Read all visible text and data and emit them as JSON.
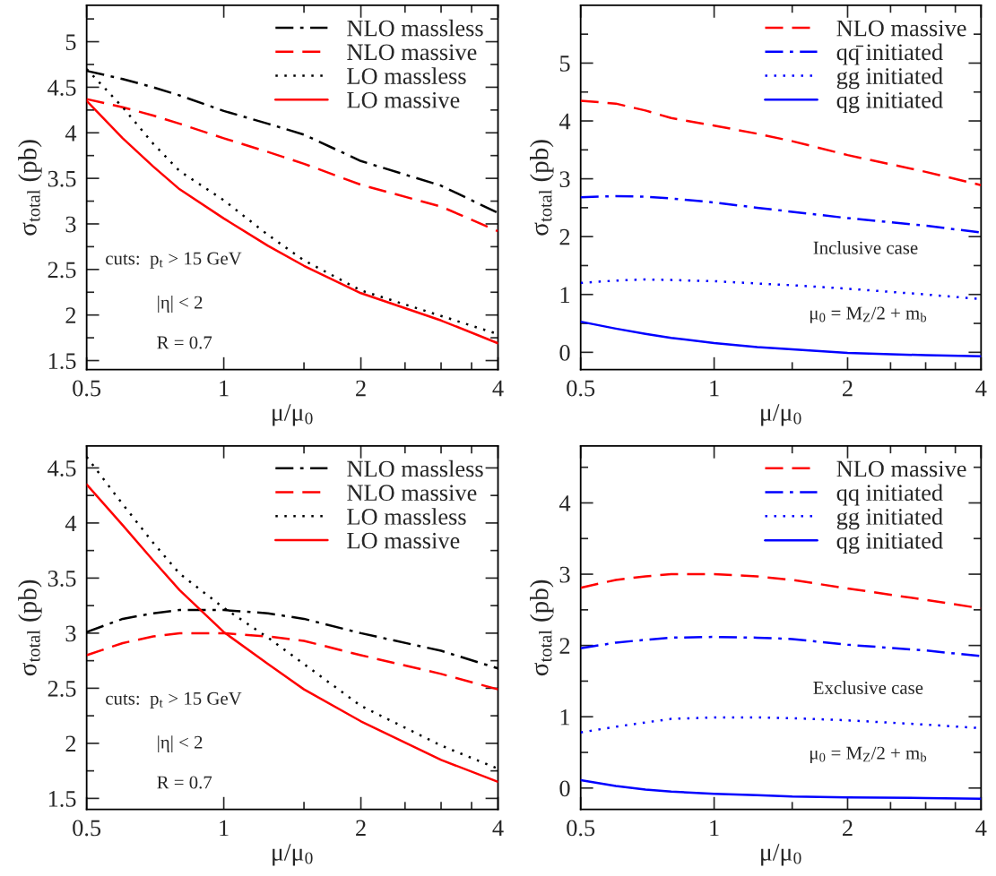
{
  "chart_data": [
    {
      "type": "line",
      "xlabel": "μ/μ$_{0}$",
      "ylabel": "σ$_{total}$ (pb)",
      "log": "x",
      "legend": "top right",
      "x": [
        0.5,
        0.6,
        0.7,
        0.8,
        1,
        1.25,
        1.5,
        2,
        3,
        4
      ],
      "xlim": [
        0.5,
        4
      ],
      "xticks": [
        0.5,
        1,
        2,
        4,
        {
          "value": 1.5,
          "label": null
        },
        {
          "value": 2.5,
          "label": null
        },
        {
          "value": 3,
          "label": null
        },
        {
          "value": 3.5,
          "label": null
        }
      ],
      "ylim": [
        1.4,
        5.4
      ],
      "yticks": [
        1.5,
        2,
        2.5,
        3,
        3.5,
        4,
        4.5,
        5,
        {
          "value": 1.75,
          "label": null
        },
        {
          "value": 2.25,
          "label": null
        },
        {
          "value": 2.75,
          "label": null
        },
        {
          "value": 3.25,
          "label": null
        },
        {
          "value": 3.75,
          "label": null
        },
        {
          "value": 4.25,
          "label": null
        },
        {
          "value": 4.75,
          "label": null
        },
        {
          "value": 5.25,
          "label": null
        }
      ],
      "series": [
        {
          "name": "NLO massless",
          "color": "#000000",
          "line_style": "dashdot",
          "values": [
            4.68,
            4.59,
            4.5,
            4.41,
            4.24,
            4.1,
            3.98,
            3.69,
            3.42,
            3.12
          ]
        },
        {
          "name": "NLO massive",
          "color": "#ff0000",
          "line_style": "dashed",
          "values": [
            4.37,
            4.28,
            4.19,
            4.1,
            3.94,
            3.79,
            3.66,
            3.43,
            3.19,
            2.92
          ]
        },
        {
          "name": "LO massless",
          "color": "#000000",
          "line_style": "dotted",
          "values": [
            4.7,
            4.28,
            3.88,
            3.58,
            3.26,
            2.88,
            2.6,
            2.27,
            1.99,
            1.79
          ]
        },
        {
          "name": "LO massive",
          "color": "#ff0000",
          "line_style": "solid",
          "values": [
            4.35,
            3.94,
            3.63,
            3.38,
            3.06,
            2.76,
            2.54,
            2.24,
            1.94,
            1.69
          ]
        }
      ],
      "annotations": [
        "cuts:  p$_{t}$ > 15 GeV",
        "|η| < 2",
        "R = 0.7"
      ]
    },
    {
      "type": "line",
      "xlabel": "μ/μ$_{0}$",
      "ylabel": "σ$_{total}$ (pb)",
      "log": "x",
      "legend": "top right",
      "x": [
        0.5,
        0.6,
        0.7,
        0.8,
        1,
        1.25,
        1.5,
        2,
        3,
        4
      ],
      "xlim": [
        0.5,
        4
      ],
      "xticks": [
        0.5,
        1,
        2,
        4,
        {
          "value": 1.5,
          "label": null
        },
        {
          "value": 2.5,
          "label": null
        },
        {
          "value": 3,
          "label": null
        },
        {
          "value": 3.5,
          "label": null
        }
      ],
      "ylim": [
        -0.3,
        6
      ],
      "yticks": [
        0,
        1,
        2,
        3,
        4,
        5,
        {
          "value": 0.5,
          "label": null
        },
        {
          "value": 1.5,
          "label": null
        },
        {
          "value": 2.5,
          "label": null
        },
        {
          "value": 3.5,
          "label": null
        },
        {
          "value": 4.5,
          "label": null
        },
        {
          "value": 5.5,
          "label": null
        }
      ],
      "series": [
        {
          "name": "NLO massive",
          "color": "#ff0000",
          "line_style": "dashed",
          "values": [
            4.35,
            4.3,
            4.18,
            4.05,
            3.92,
            3.78,
            3.65,
            3.41,
            3.12,
            2.89
          ]
        },
        {
          "name": "qq̄ initiated",
          "color": "#0000ff",
          "line_style": "dashdot",
          "values": [
            2.68,
            2.7,
            2.69,
            2.66,
            2.59,
            2.5,
            2.43,
            2.32,
            2.19,
            2.07
          ]
        },
        {
          "name": "gg initiated",
          "color": "#0000ff",
          "line_style": "dotted",
          "values": [
            1.2,
            1.24,
            1.26,
            1.25,
            1.23,
            1.19,
            1.16,
            1.1,
            1.0,
            0.92
          ]
        },
        {
          "name": "qg initiated",
          "color": "#0000ff",
          "line_style": "solid",
          "values": [
            0.53,
            0.41,
            0.32,
            0.25,
            0.16,
            0.09,
            0.05,
            -0.01,
            -0.05,
            -0.07
          ]
        }
      ],
      "annotations": [
        "Inclusive case",
        "μ$_{0}$ = M$_{Z}$/2 + m$_{b}$"
      ]
    },
    {
      "type": "line",
      "xlabel": "μ/μ$_{0}$",
      "ylabel": "σ$_{total}$ (pb)",
      "log": "x",
      "legend": "top right",
      "x": [
        0.5,
        0.6,
        0.7,
        0.8,
        1,
        1.25,
        1.5,
        2,
        3,
        4
      ],
      "xlim": [
        0.5,
        4
      ],
      "xticks": [
        0.5,
        1,
        2,
        4,
        {
          "value": 1.5,
          "label": null
        },
        {
          "value": 2.5,
          "label": null
        },
        {
          "value": 3,
          "label": null
        },
        {
          "value": 3.5,
          "label": null
        }
      ],
      "ylim": [
        1.4,
        4.7
      ],
      "yticks": [
        1.5,
        2,
        2.5,
        3,
        3.5,
        4,
        4.5,
        {
          "value": 1.75,
          "label": null
        },
        {
          "value": 2.25,
          "label": null
        },
        {
          "value": 2.75,
          "label": null
        },
        {
          "value": 3.25,
          "label": null
        },
        {
          "value": 3.75,
          "label": null
        },
        {
          "value": 4.25,
          "label": null
        }
      ],
      "series": [
        {
          "name": "NLO massless",
          "color": "#000000",
          "line_style": "dashdot",
          "values": [
            3.01,
            3.13,
            3.18,
            3.21,
            3.21,
            3.18,
            3.13,
            3.0,
            2.84,
            2.68
          ]
        },
        {
          "name": "NLO massive",
          "color": "#ff0000",
          "line_style": "dashed",
          "values": [
            2.8,
            2.91,
            2.97,
            3.0,
            3.0,
            2.97,
            2.93,
            2.8,
            2.63,
            2.49
          ]
        },
        {
          "name": "LO massless",
          "color": "#000000",
          "line_style": "dotted",
          "values": [
            4.6,
            4.17,
            3.82,
            3.54,
            3.23,
            2.96,
            2.72,
            2.34,
            1.98,
            1.77
          ]
        },
        {
          "name": "LO massive",
          "color": "#ff0000",
          "line_style": "solid",
          "values": [
            4.35,
            3.98,
            3.66,
            3.39,
            3.01,
            2.72,
            2.49,
            2.2,
            1.85,
            1.65
          ]
        }
      ],
      "annotations": [
        "cuts:  p$_{t}$ > 15 GeV",
        "|η| < 2",
        "R = 0.7"
      ]
    },
    {
      "type": "line",
      "xlabel": "μ/μ$_{0}$",
      "ylabel": "σ$_{total}$ (pb)",
      "log": "x",
      "legend": "top right",
      "x": [
        0.5,
        0.6,
        0.7,
        0.8,
        1,
        1.25,
        1.5,
        2,
        3,
        4
      ],
      "xlim": [
        0.5,
        4
      ],
      "xticks": [
        0.5,
        1,
        2,
        4,
        {
          "value": 1.5,
          "label": null
        },
        {
          "value": 2.5,
          "label": null
        },
        {
          "value": 3,
          "label": null
        },
        {
          "value": 3.5,
          "label": null
        }
      ],
      "ylim": [
        -0.3,
        4.8
      ],
      "yticks": [
        0,
        1,
        2,
        3,
        4,
        {
          "value": 0.5,
          "label": null
        },
        {
          "value": 1.5,
          "label": null
        },
        {
          "value": 2.5,
          "label": null
        },
        {
          "value": 3.5,
          "label": null
        },
        {
          "value": 4.5,
          "label": null
        }
      ],
      "series": [
        {
          "name": "NLO massive",
          "color": "#ff0000",
          "line_style": "dashed",
          "values": [
            2.81,
            2.92,
            2.97,
            3.0,
            3.0,
            2.97,
            2.92,
            2.8,
            2.64,
            2.52
          ]
        },
        {
          "name": "qq initiated",
          "color": "#0000ff",
          "line_style": "dashdot",
          "values": [
            1.96,
            2.04,
            2.08,
            2.11,
            2.12,
            2.11,
            2.09,
            2.01,
            1.93,
            1.85
          ]
        },
        {
          "name": "gg initiated",
          "color": "#0000ff",
          "line_style": "dotted",
          "values": [
            0.78,
            0.86,
            0.92,
            0.97,
            0.99,
            0.99,
            0.98,
            0.95,
            0.89,
            0.84
          ]
        },
        {
          "name": "qg initiated",
          "color": "#0000ff",
          "line_style": "solid",
          "values": [
            0.11,
            0.03,
            -0.02,
            -0.05,
            -0.08,
            -0.1,
            -0.12,
            -0.13,
            -0.14,
            -0.15
          ]
        }
      ],
      "annotations": [
        "Exclusive case",
        "μ$_{0}$ = M$_{Z}$/2 + m$_{b}$"
      ]
    }
  ]
}
